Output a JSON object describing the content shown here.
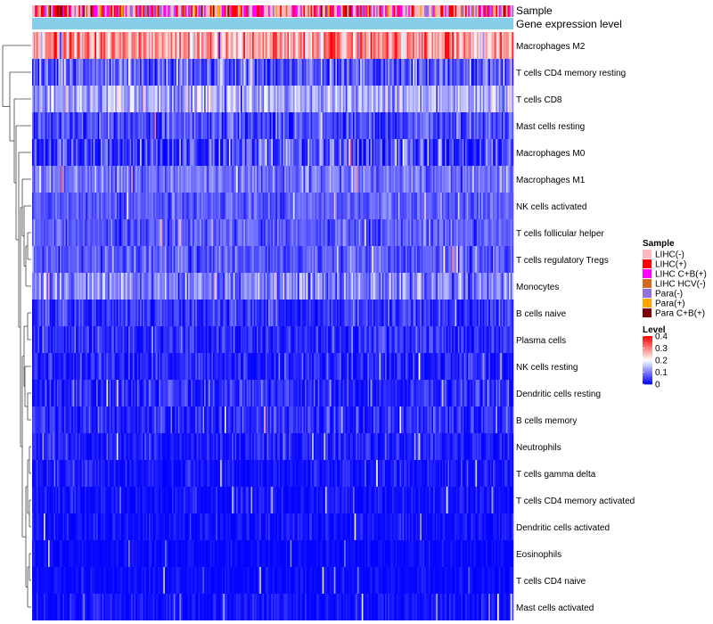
{
  "chart_data": {
    "type": "heatmap",
    "title": "",
    "annotation_tracks": [
      "Sample",
      "Gene expression level"
    ],
    "rows": [
      {
        "name": "Macrophages M2",
        "mean": 0.28,
        "spread": 0.1
      },
      {
        "name": "T cells CD4 memory resting",
        "mean": 0.07,
        "spread": 0.08
      },
      {
        "name": "T cells CD8",
        "mean": 0.13,
        "spread": 0.07
      },
      {
        "name": "Mast cells resting",
        "mean": 0.06,
        "spread": 0.06
      },
      {
        "name": "Macrophages M0",
        "mean": 0.05,
        "spread": 0.1
      },
      {
        "name": "Macrophages M1",
        "mean": 0.09,
        "spread": 0.05
      },
      {
        "name": "NK cells activated",
        "mean": 0.07,
        "spread": 0.04
      },
      {
        "name": "T cells follicular helper",
        "mean": 0.07,
        "spread": 0.045
      },
      {
        "name": "T cells regulatory  Tregs",
        "mean": 0.07,
        "spread": 0.05
      },
      {
        "name": "Monocytes",
        "mean": 0.1,
        "spread": 0.07
      },
      {
        "name": "B cells naive",
        "mean": 0.04,
        "spread": 0.05
      },
      {
        "name": "Plasma cells",
        "mean": 0.03,
        "spread": 0.05
      },
      {
        "name": "NK cells resting",
        "mean": 0.02,
        "spread": 0.05
      },
      {
        "name": "Dendritic cells resting",
        "mean": 0.03,
        "spread": 0.06
      },
      {
        "name": "B cells memory",
        "mean": 0.03,
        "spread": 0.05
      },
      {
        "name": "Neutrophils",
        "mean": 0.02,
        "spread": 0.04
      },
      {
        "name": "T cells gamma delta",
        "mean": 0.01,
        "spread": 0.04
      },
      {
        "name": "T cells CD4 memory activated",
        "mean": 0.01,
        "spread": 0.03
      },
      {
        "name": "Dendritic cells activated",
        "mean": 0.01,
        "spread": 0.03
      },
      {
        "name": "Eosinophils",
        "mean": 0.005,
        "spread": 0.02
      },
      {
        "name": "T cells CD4 naive",
        "mean": 0.005,
        "spread": 0.02
      },
      {
        "name": "Mast cells activated",
        "mean": 0.01,
        "spread": 0.03
      }
    ],
    "sample_groups": [
      {
        "name": "LIHC(-)",
        "color": "#FFB6C1"
      },
      {
        "name": "LIHC(+)",
        "color": "#FF0000"
      },
      {
        "name": "LIHC C+B(+)",
        "color": "#FF00FF"
      },
      {
        "name": "LIHC HCV(-)",
        "color": "#D2691E"
      },
      {
        "name": "Para(-)",
        "color": "#9370DB"
      },
      {
        "name": "Para(+)",
        "color": "#FFA500"
      },
      {
        "name": "Para C+B(+)",
        "color": "#800000"
      }
    ],
    "gene_expression_color": "#87CEEB",
    "color_scale": {
      "title": "Level",
      "min": 0,
      "max": 0.4,
      "low_color": "#0000FF",
      "mid_color": "#FFFFFF",
      "high_color": "#FF0000",
      "ticks": [
        "0",
        "0.1",
        "0.2",
        "0.3",
        "0.4"
      ]
    },
    "legend": {
      "sample_title": "Sample",
      "level_title": "Level",
      "position": "right"
    },
    "column_count": 330
  }
}
